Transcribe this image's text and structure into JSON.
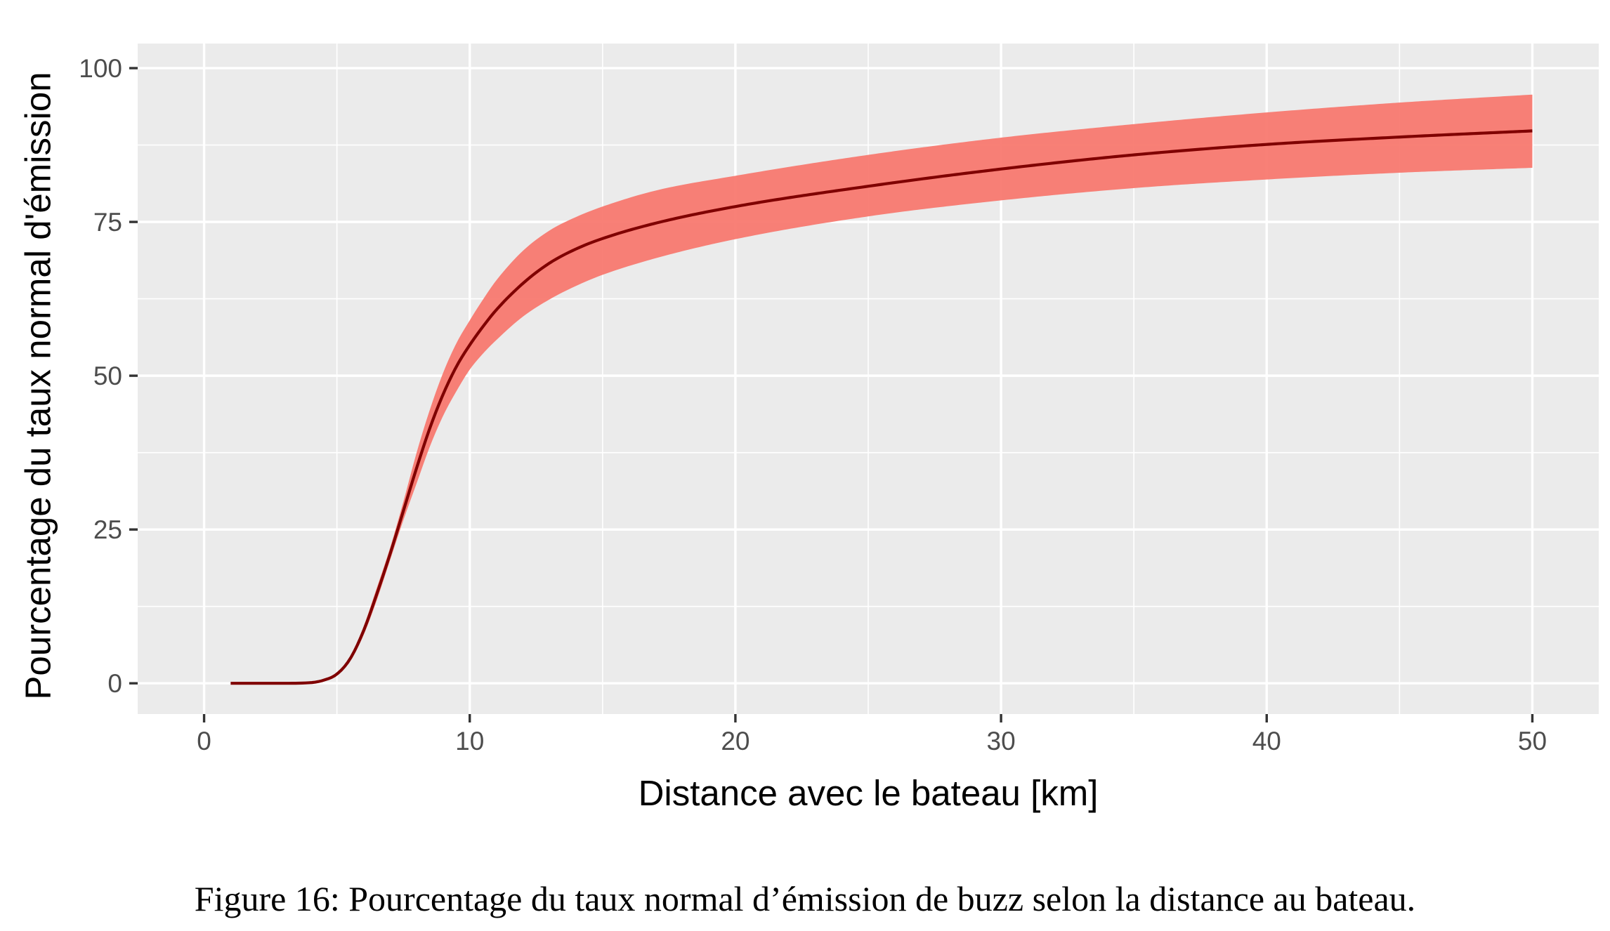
{
  "caption": "Figure 16: Pourcentage du taux normal d’émission de buzz selon la distance au bateau.",
  "chart_data": {
    "type": "line",
    "title": "",
    "xlabel": "Distance avec le bateau [km]",
    "ylabel": "Pourcentage du taux normal d'émission",
    "xlim": [
      -2.5,
      52.5
    ],
    "ylim": [
      -5,
      104
    ],
    "x_ticks": [
      0,
      10,
      20,
      30,
      40,
      50
    ],
    "x_tick_labels": [
      "0",
      "10",
      "20",
      "30",
      "40",
      "50"
    ],
    "y_ticks": [
      0,
      25,
      50,
      75,
      100
    ],
    "y_tick_labels": [
      "0",
      "25",
      "50",
      "75",
      "100"
    ],
    "x_minor_gridlines": [
      5,
      15,
      25,
      35,
      45
    ],
    "y_minor_gridlines": [
      12.5,
      37.5,
      62.5,
      87.5
    ],
    "grid": true,
    "legend": "none",
    "series": [
      {
        "type": "line",
        "x": [
          1,
          2,
          3,
          4,
          4.5,
          5,
          5.5,
          6,
          6.5,
          7,
          7.5,
          8,
          8.5,
          9,
          9.5,
          10,
          10.5,
          11,
          12,
          13,
          14,
          15,
          17,
          20,
          25,
          30,
          35,
          40,
          45,
          50
        ],
        "y": [
          0,
          0,
          0,
          0.1,
          0.5,
          1.5,
          4,
          8.5,
          14.5,
          21,
          28,
          35,
          41.5,
          47,
          51.5,
          55,
          58,
          60.7,
          65,
          68.3,
          70.6,
          72.3,
          74.8,
          77.5,
          80.8,
          83.6,
          85.9,
          87.6,
          88.8,
          89.8
        ]
      },
      {
        "type": "ribbon",
        "x": [
          1,
          2,
          3,
          4,
          4.5,
          5,
          5.5,
          6,
          6.5,
          7,
          7.5,
          8,
          8.5,
          9,
          9.5,
          10,
          10.5,
          11,
          12,
          13,
          14,
          15,
          17,
          20,
          25,
          30,
          35,
          40,
          45,
          50
        ],
        "lower": [
          0,
          0,
          0,
          0.1,
          0.4,
          1.3,
          3.6,
          7.8,
          13.5,
          20,
          26.5,
          32.5,
          38.5,
          43.5,
          47.5,
          51,
          53.6,
          55.8,
          59.6,
          62.4,
          64.6,
          66.4,
          69.1,
          72.2,
          75.9,
          78.5,
          80.5,
          81.9,
          83,
          83.8
        ],
        "upper": [
          0,
          0,
          0,
          0.1,
          0.6,
          1.7,
          4.4,
          9.2,
          15.5,
          22,
          29.5,
          37.5,
          44.5,
          50.5,
          55.3,
          59,
          62.4,
          65.5,
          70.3,
          73.6,
          75.8,
          77.5,
          80.1,
          82.5,
          85.9,
          88.7,
          90.9,
          92.8,
          94.4,
          95.7
        ]
      }
    ],
    "colors": {
      "panel": "#ebebeb",
      "grid": "#ffffff",
      "ribbon": "#f8766d",
      "line": "#7f0000",
      "tick": "#333333",
      "tick_label": "#4d4d4d"
    }
  }
}
